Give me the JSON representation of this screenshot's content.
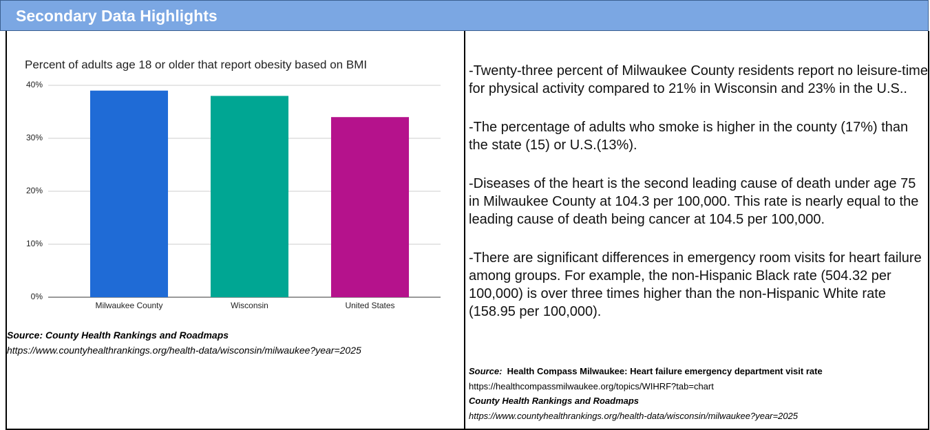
{
  "header": {
    "title": "Secondary Data Highlights"
  },
  "chart_data": {
    "type": "bar",
    "title": "Percent of adults age 18 or older that report obesity based on BMI",
    "categories": [
      "Milwaukee County",
      "Wisconsin",
      "United States"
    ],
    "values": [
      39,
      38,
      34
    ],
    "colors": [
      "#1f6bd6",
      "#00a693",
      "#b5128c"
    ],
    "ylim": [
      0,
      40
    ],
    "yticks": [
      {
        "value": 0,
        "label": "0%"
      },
      {
        "value": 10,
        "label": "10%"
      },
      {
        "value": 20,
        "label": "20%"
      },
      {
        "value": 30,
        "label": "30%"
      },
      {
        "value": 40,
        "label": "40%"
      }
    ],
    "grid": true
  },
  "left_source": {
    "label": "Source: County Health Rankings and Roadmaps",
    "url": "https://www.countyhealthrankings.org/health-data/wisconsin/milwaukee?year=2025"
  },
  "paragraphs": [
    "-Twenty-three percent of Milwaukee County residents report no leisure-time for physical activity compared to 21% in Wisconsin and 23% in the U.S..",
    "-The percentage of adults who smoke is higher in the county (17%) than the state (15) or U.S.(13%).",
    "-Diseases of the heart is the second leading cause of death under age 75 in Milwaukee County at 104.3 per 100,000. This rate is nearly equal to the leading cause of death being cancer at 104.5 per 100,000.",
    "-There are significant differences in emergency room visits for heart failure among groups. For example, the non-Hispanic Black rate (504.32 per 100,000)  is over three times higher than the non-Hispanic White rate (158.95 per 100,000)."
  ],
  "right_source": {
    "label": "Source:",
    "title": "Health Compass Milwaukee: Heart failure emergency department visit rate",
    "url": "https://healthcompassmilwaukee.org/topics/WIHRF?tab=chart",
    "second_title": "County Health Rankings and Roadmaps",
    "second_url": "https://www.countyhealthrankings.org/health-data/wisconsin/milwaukee?year=2025"
  }
}
